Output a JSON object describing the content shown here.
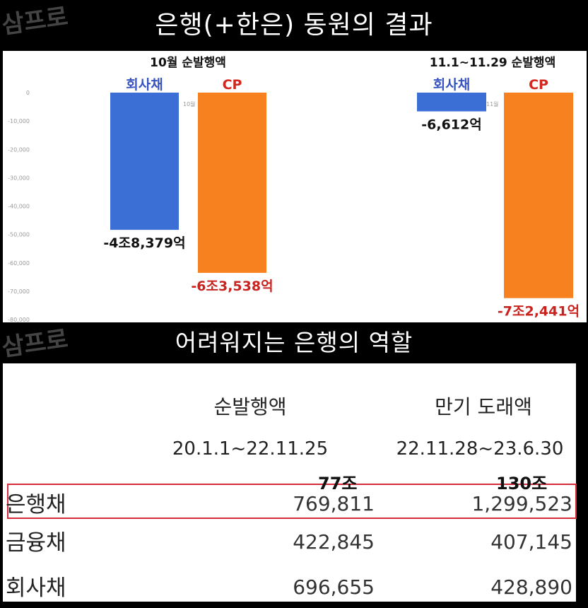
{
  "titles": {
    "top": "은행(+한은) 동원의 결과",
    "bottom": "어려워지는 은행의 역할",
    "logo": "삼프로"
  },
  "chart_data": [
    {
      "type": "bar",
      "title": "10월 순발행액",
      "categories": [
        "회사채",
        "CP"
      ],
      "values": [
        -48379,
        -63538
      ],
      "data_labels": [
        "-4조8,379억",
        "-6조3,538억"
      ],
      "category_colors": [
        "#3c6fd6",
        "#f7801f"
      ],
      "label_colors": [
        "#111111",
        "#c8231f"
      ],
      "header_colors": [
        "#3653c0",
        "#d2261e"
      ],
      "axis_small_label": "10월",
      "ylim": [
        -80000,
        0
      ],
      "yticks": [
        0,
        -10000,
        -20000,
        -30000,
        -40000,
        -50000,
        -60000,
        -70000,
        -80000
      ],
      "ytick_labels": [
        "0",
        "-10,000",
        "-20,000",
        "-30,000",
        "-40,000",
        "-50,000",
        "-60,000",
        "-70,000",
        "-80,000"
      ]
    },
    {
      "type": "bar",
      "title": "11.1~11.29 순발행액",
      "categories": [
        "회사채",
        "CP"
      ],
      "values": [
        -6612,
        -72441
      ],
      "data_labels": [
        "-6,612억",
        "-7조2,441억"
      ],
      "category_colors": [
        "#3c6fd6",
        "#f7801f"
      ],
      "label_colors": [
        "#111111",
        "#c8231f"
      ],
      "header_colors": [
        "#3653c0",
        "#d2261e"
      ],
      "axis_small_label": "11월",
      "ylim": [
        -80000,
        0
      ]
    },
    {
      "type": "table",
      "columns": [
        {
          "title": "순발행액",
          "period": "20.1.1~22.11.25"
        },
        {
          "title": "만기 도래액",
          "period": "22.11.28~23.6.30"
        }
      ],
      "rows": [
        {
          "label": "은행채",
          "values": [
            "769,811",
            "1,299,523"
          ],
          "notes": [
            "77조",
            "130조"
          ],
          "highlighted": true
        },
        {
          "label": "금융채",
          "values": [
            "422,845",
            "407,145"
          ]
        },
        {
          "label": "회사채",
          "values": [
            "696,655",
            "428,890"
          ]
        }
      ],
      "highlight_color": "#d62b3a"
    }
  ]
}
